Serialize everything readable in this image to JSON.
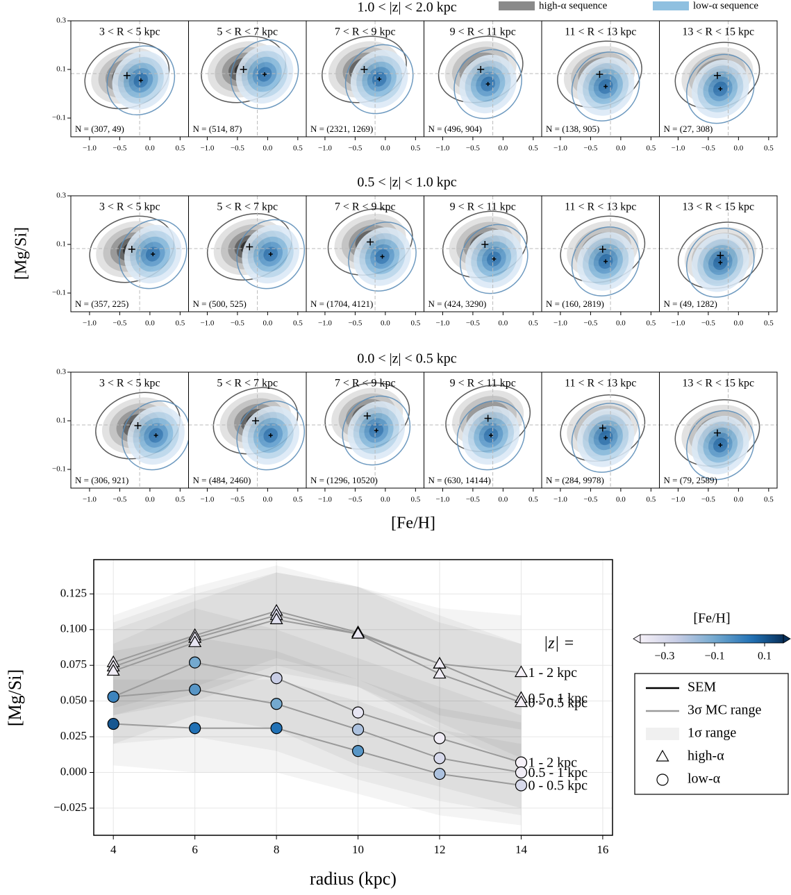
{
  "chart_data": [
    {
      "type": "contour",
      "xlabel": "[Fe/H]",
      "ylabel": "[Mg/Si]",
      "xlim": [
        -1.31,
        0.64
      ],
      "xticks": [
        {
          "value": -1.0,
          "label": "−1.0"
        },
        {
          "value": -0.5,
          "label": "−0.5"
        },
        {
          "value": 0.0,
          "label": "0.0"
        },
        {
          "value": 0.5,
          "label": "0.5"
        }
      ],
      "ylim": [
        -0.177,
        0.3
      ],
      "yticks": [
        {
          "value": -0.1,
          "label": "−0.1"
        },
        {
          "value": 0.1,
          "label": "0.1"
        },
        {
          "value": 0.3,
          "label": "0.3"
        }
      ],
      "reference_feh": -0.17,
      "reference_mgsi": 0.083,
      "legend": [
        {
          "label": "high-α sequence",
          "color": "#8a8a8a"
        },
        {
          "label": "low-α sequence",
          "color": "#8fc0e0"
        }
      ],
      "rows": [
        {
          "title": "1.0 < |z| < 2.0 kpc",
          "panels": [
            {
              "label": "3 < R < 5 kpc",
              "n": "N = (307, 49)",
              "high_feh": -0.38,
              "high_mgsi": 0.075,
              "low_feh": -0.15,
              "low_mgsi": 0.055
            },
            {
              "label": "5 < R < 7 kpc",
              "n": "N = (514, 87)",
              "high_feh": -0.4,
              "high_mgsi": 0.1,
              "low_feh": -0.05,
              "low_mgsi": 0.08
            },
            {
              "label": "7 < R < 9 kpc",
              "n": "N = (2321, 1269)",
              "high_feh": -0.35,
              "high_mgsi": 0.1,
              "low_feh": -0.1,
              "low_mgsi": 0.06
            },
            {
              "label": "9 < R < 11 kpc",
              "n": "N = (496, 904)",
              "high_feh": -0.37,
              "high_mgsi": 0.1,
              "low_feh": -0.25,
              "low_mgsi": 0.04
            },
            {
              "label": "11 < R < 13 kpc",
              "n": "N = (138, 905)",
              "high_feh": -0.35,
              "high_mgsi": 0.08,
              "low_feh": -0.25,
              "low_mgsi": 0.03
            },
            {
              "label": "13 < R < 15 kpc",
              "n": "N = (27, 308)",
              "high_feh": -0.35,
              "high_mgsi": 0.075,
              "low_feh": -0.3,
              "low_mgsi": 0.02
            }
          ]
        },
        {
          "title": "0.5 < |z| < 1.0 kpc",
          "panels": [
            {
              "label": "3 < R < 5 kpc",
              "n": "N = (357, 225)",
              "high_feh": -0.3,
              "high_mgsi": 0.08,
              "low_feh": 0.05,
              "low_mgsi": 0.06
            },
            {
              "label": "5 < R < 7 kpc",
              "n": "N = (500, 525)",
              "high_feh": -0.3,
              "high_mgsi": 0.09,
              "low_feh": 0.05,
              "low_mgsi": 0.06
            },
            {
              "label": "7 < R < 9 kpc",
              "n": "N = (1704, 4121)",
              "high_feh": -0.25,
              "high_mgsi": 0.11,
              "low_feh": -0.05,
              "low_mgsi": 0.05
            },
            {
              "label": "9 < R < 11 kpc",
              "n": "N = (424, 3290)",
              "high_feh": -0.3,
              "high_mgsi": 0.1,
              "low_feh": -0.15,
              "low_mgsi": 0.04
            },
            {
              "label": "11 < R < 13 kpc",
              "n": "N = (160, 2819)",
              "high_feh": -0.3,
              "high_mgsi": 0.08,
              "low_feh": -0.25,
              "low_mgsi": 0.03
            },
            {
              "label": "13 < R < 15 kpc",
              "n": "N = (49, 1282)",
              "high_feh": -0.3,
              "high_mgsi": 0.055,
              "low_feh": -0.3,
              "low_mgsi": 0.025
            }
          ]
        },
        {
          "title": "0.0 < |z| < 0.5 kpc",
          "panels": [
            {
              "label": "3 < R < 5 kpc",
              "n": "N = (306, 921)",
              "high_feh": -0.2,
              "high_mgsi": 0.08,
              "low_feh": 0.1,
              "low_mgsi": 0.04
            },
            {
              "label": "5 < R < 7 kpc",
              "n": "N = (484, 2460)",
              "high_feh": -0.2,
              "high_mgsi": 0.1,
              "low_feh": 0.05,
              "low_mgsi": 0.04
            },
            {
              "label": "7 < R < 9 kpc",
              "n": "N = (1296, 10520)",
              "high_feh": -0.3,
              "high_mgsi": 0.12,
              "low_feh": -0.15,
              "low_mgsi": 0.06
            },
            {
              "label": "9 < R < 11 kpc",
              "n": "N = (630, 14144)",
              "high_feh": -0.25,
              "high_mgsi": 0.11,
              "low_feh": -0.2,
              "low_mgsi": 0.04
            },
            {
              "label": "11 < R < 13 kpc",
              "n": "N = (284, 9978)",
              "high_feh": -0.3,
              "high_mgsi": 0.07,
              "low_feh": -0.25,
              "low_mgsi": 0.03
            },
            {
              "label": "13 < R < 15 kpc",
              "n": "N = (79, 2589)",
              "high_feh": -0.35,
              "high_mgsi": 0.05,
              "low_feh": -0.3,
              "low_mgsi": 0.0
            }
          ]
        }
      ]
    },
    {
      "type": "line",
      "xlabel": "radius (kpc)",
      "ylabel": "[Mg/Si]",
      "annotation": "|z| =",
      "x": [
        4,
        6,
        8,
        10,
        12,
        14
      ],
      "xlim": [
        3.52,
        16.24
      ],
      "xticks": [
        4,
        6,
        8,
        10,
        12,
        14,
        16
      ],
      "ylim": [
        -0.044,
        0.149
      ],
      "yticks": [
        {
          "value": -0.025,
          "label": "−0.025"
        },
        {
          "value": 0.0,
          "label": "0.000"
        },
        {
          "value": 0.025,
          "label": "0.025"
        },
        {
          "value": 0.05,
          "label": "0.050"
        },
        {
          "value": 0.075,
          "label": "0.075"
        },
        {
          "value": 0.1,
          "label": "0.100"
        },
        {
          "value": 0.125,
          "label": "0.125"
        }
      ],
      "grid": true,
      "line_color": "#9a9a9a",
      "colorbar": {
        "title": "[Fe/H]",
        "lim": [
          -0.397,
          0.175
        ],
        "ticks": [
          {
            "value": -0.3,
            "label": "−0.3"
          },
          {
            "value": -0.1,
            "label": "−0.1"
          },
          {
            "value": 0.1,
            "label": "0.1"
          }
        ]
      },
      "legend": [
        {
          "label": "SEM",
          "kind": "line",
          "color": "#000000"
        },
        {
          "label": "3σ MC range",
          "kind": "line",
          "color": "#9a9a9a"
        },
        {
          "label": "1σ range",
          "kind": "patch",
          "color": "#f0f0f0"
        },
        {
          "label": "high-α",
          "kind": "triangle"
        },
        {
          "label": "low-α",
          "kind": "circle"
        }
      ],
      "series": [
        {
          "label": "1 - 2 kpc",
          "marker": "triangle",
          "values": [
            0.077,
            0.096,
            0.113,
            0.098,
            0.076,
            0.07
          ],
          "feh": [
            -0.38,
            -0.35,
            -0.33,
            -0.36,
            -0.38,
            -0.4
          ],
          "lower": [
            0.045,
            0.06,
            0.08,
            0.065,
            0.04,
            0.03
          ],
          "upper": [
            0.11,
            0.13,
            0.145,
            0.13,
            0.115,
            0.11
          ]
        },
        {
          "label": "0.5 - 1 kpc",
          "marker": "triangle",
          "values": [
            0.074,
            0.094,
            0.11,
            0.097,
            0.076,
            0.052
          ],
          "feh": [
            -0.38,
            -0.35,
            -0.33,
            -0.36,
            -0.38,
            -0.4
          ],
          "lower": [
            0.04,
            0.055,
            0.075,
            0.06,
            0.035,
            0.01
          ],
          "upper": [
            0.105,
            0.125,
            0.14,
            0.13,
            0.11,
            0.09
          ]
        },
        {
          "label": "0 - 0.5 kpc",
          "marker": "triangle",
          "values": [
            0.071,
            0.091,
            0.107,
            0.097,
            0.069,
            0.049
          ],
          "feh": [
            -0.38,
            -0.35,
            -0.33,
            -0.36,
            -0.38,
            -0.4
          ],
          "lower": [
            0.04,
            0.05,
            0.07,
            0.06,
            0.03,
            0.005
          ],
          "upper": [
            0.1,
            0.12,
            0.14,
            0.13,
            0.105,
            0.09
          ]
        },
        {
          "label": "1 - 2 kpc",
          "marker": "circle",
          "values": [
            0.053,
            0.077,
            0.066,
            0.042,
            0.024,
            0.007
          ],
          "feh": [
            -0.05,
            -0.1,
            -0.25,
            -0.35,
            -0.38,
            -0.4
          ],
          "lower": [
            0.02,
            0.04,
            0.03,
            0.005,
            -0.01,
            -0.025
          ],
          "upper": [
            0.09,
            0.115,
            0.1,
            0.08,
            0.06,
            0.04
          ]
        },
        {
          "label": "0.5 - 1 kpc",
          "marker": "circle",
          "values": [
            0.053,
            0.058,
            0.048,
            0.03,
            0.01,
            0.0
          ],
          "feh": [
            0.0,
            -0.05,
            -0.1,
            -0.2,
            -0.3,
            -0.38
          ],
          "lower": [
            0.02,
            0.025,
            0.015,
            -0.005,
            -0.02,
            -0.03
          ],
          "upper": [
            0.085,
            0.095,
            0.085,
            0.065,
            0.045,
            0.035
          ]
        },
        {
          "label": "0 - 0.5 kpc",
          "marker": "circle",
          "values": [
            0.034,
            0.031,
            0.031,
            0.015,
            -0.001,
            -0.009
          ],
          "feh": [
            0.1,
            0.05,
            0.05,
            -0.05,
            -0.2,
            -0.3
          ],
          "lower": [
            0.005,
            0.0,
            0.0,
            -0.015,
            -0.03,
            -0.037
          ],
          "upper": [
            0.065,
            0.065,
            0.065,
            0.05,
            0.03,
            0.02
          ]
        }
      ]
    }
  ]
}
